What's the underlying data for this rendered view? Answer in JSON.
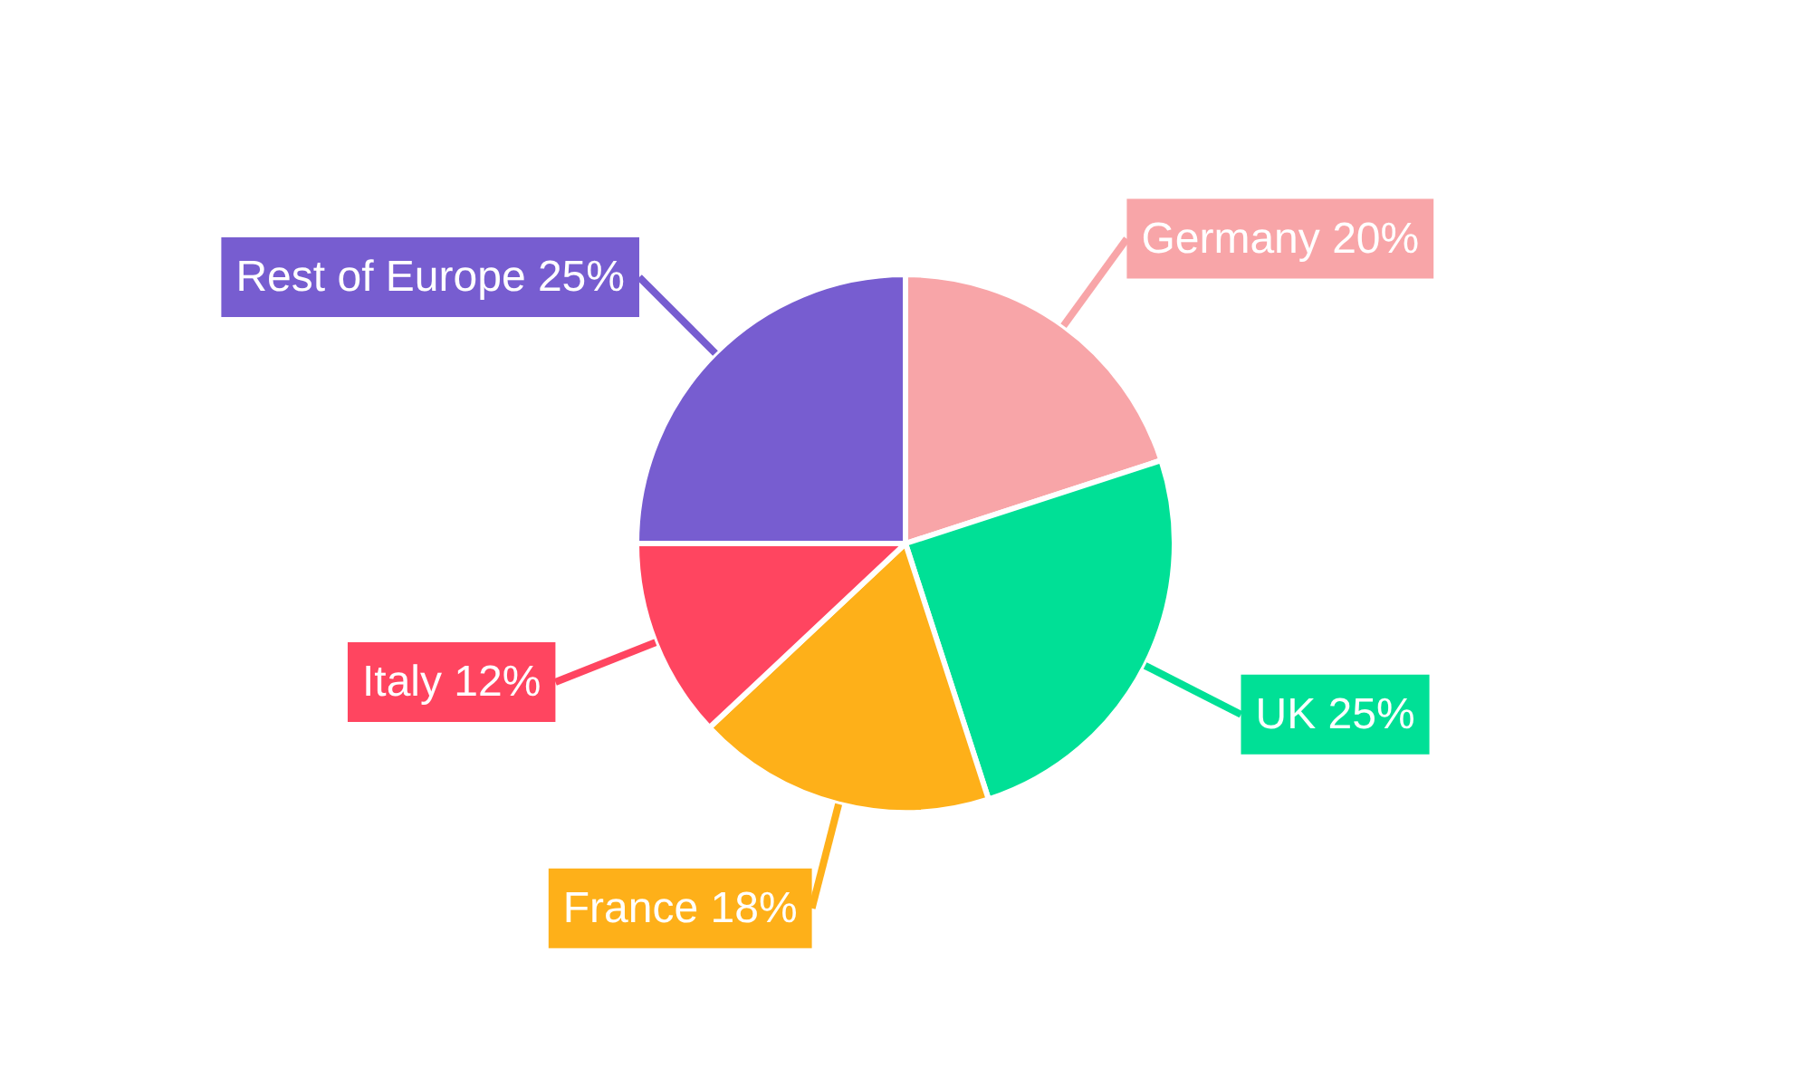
{
  "chart_data": {
    "type": "pie",
    "categories": [
      "Germany",
      "UK",
      "France",
      "Italy",
      "Rest of Europe"
    ],
    "values": [
      20,
      25,
      18,
      12,
      25
    ],
    "value_labels": [
      "20%",
      "25%",
      "18%",
      "12%",
      "25%"
    ],
    "colors": [
      "#f8a5a8",
      "#00e096",
      "#feb019",
      "#ff4560",
      "#775dd0"
    ],
    "legend": false
  }
}
